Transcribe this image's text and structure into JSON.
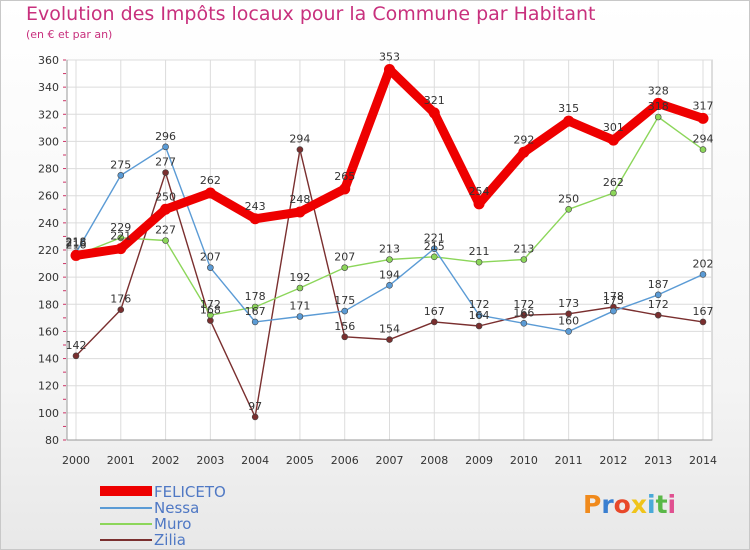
{
  "header": {
    "title": "Evolution des Impôts locaux pour la Commune par Habitant",
    "subtitle": "(en € et par an)"
  },
  "logo": {
    "text": "Proxiti",
    "letter_colors": [
      "#f08a1c",
      "#3a7fd0",
      "#e8482a",
      "#f0c41a",
      "#4aa9d8",
      "#5ab848",
      "#e05090"
    ]
  },
  "chart_data": {
    "type": "line",
    "title": "Evolution des Impôts locaux pour la Commune par Habitant",
    "subtitle": "(en € et par an)",
    "xlabel": "",
    "ylabel": "",
    "categories": [
      "2000",
      "2001",
      "2002",
      "2003",
      "2004",
      "2005",
      "2006",
      "2007",
      "2008",
      "2009",
      "2010",
      "2011",
      "2012",
      "2013",
      "2014"
    ],
    "ylim": [
      80,
      360
    ],
    "yticks": [
      80,
      100,
      120,
      140,
      160,
      180,
      200,
      220,
      240,
      260,
      280,
      300,
      320,
      340,
      360
    ],
    "grid": true,
    "legend_position": "bottom-left",
    "series": [
      {
        "name": "FELICETO",
        "color": "#ee0000",
        "values": [
          216,
          221,
          250,
          262,
          243,
          248,
          265,
          353,
          321,
          254,
          292,
          315,
          301,
          328,
          317
        ]
      },
      {
        "name": "Nessa",
        "color": "#5b9bd5",
        "values": [
          218,
          275,
          296,
          207,
          167,
          171,
          175,
          194,
          221,
          172,
          166,
          160,
          175,
          187,
          202
        ]
      },
      {
        "name": "Muro",
        "color": "#8cd65a",
        "values": [
          216,
          229,
          227,
          172,
          178,
          192,
          207,
          213,
          215,
          211,
          213,
          250,
          262,
          318,
          294
        ]
      },
      {
        "name": "Zilia",
        "color": "#7a2f2f",
        "values": [
          142,
          176,
          277,
          168,
          97,
          294,
          156,
          154,
          167,
          164,
          172,
          173,
          178,
          172,
          167
        ]
      }
    ]
  }
}
